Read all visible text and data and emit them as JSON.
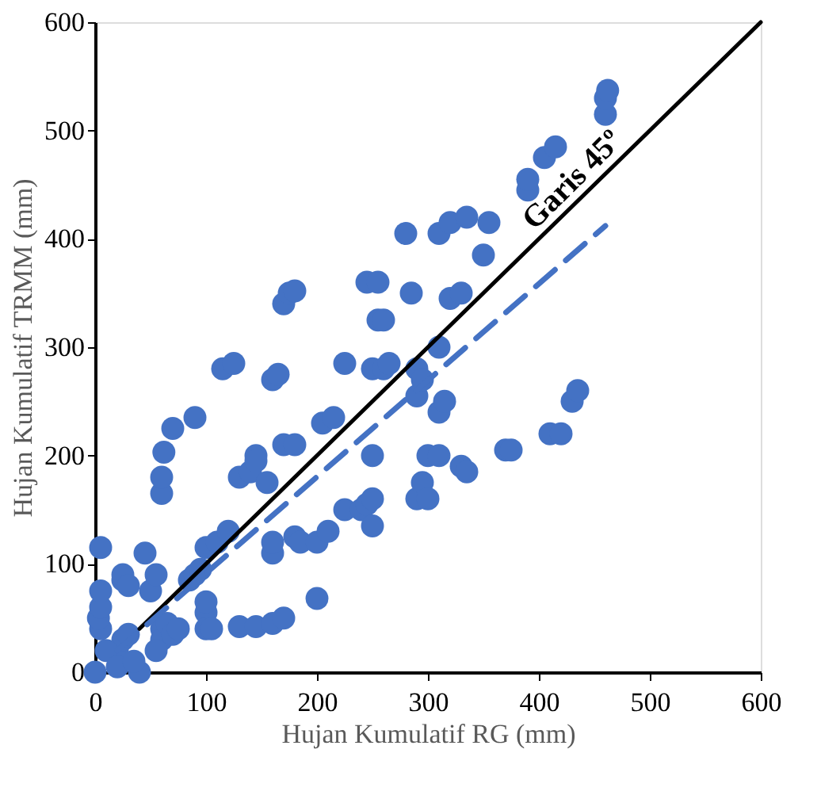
{
  "chart_data": {
    "type": "scatter",
    "xlabel": "Hujan Kumulatif  RG (mm)",
    "ylabel": "Hujan Kumulatif TRMM (mm)",
    "xlim": [
      0,
      600
    ],
    "ylim": [
      0,
      600
    ],
    "xticks": [
      0,
      100,
      200,
      300,
      400,
      500,
      600
    ],
    "yticks": [
      0,
      100,
      200,
      300,
      400,
      500,
      600
    ],
    "grid": false,
    "annotations": [
      "Garis 45º"
    ],
    "series": [
      {
        "color": "#4472c4",
        "marker": "circle",
        "x": [
          0,
          20,
          25,
          30,
          5,
          3,
          5,
          5,
          5,
          10,
          20,
          40,
          35,
          25,
          25,
          30,
          45,
          50,
          55,
          60,
          60,
          55,
          65,
          70,
          75,
          60,
          60,
          62,
          70,
          90,
          85,
          90,
          95,
          100,
          100,
          105,
          100,
          100,
          110,
          120,
          115,
          125,
          130,
          140,
          145,
          145,
          155,
          160,
          165,
          170,
          180,
          170,
          175,
          180,
          130,
          145,
          160,
          170,
          160,
          160,
          180,
          185,
          200,
          200,
          210,
          205,
          215,
          225,
          225,
          240,
          245,
          250,
          250,
          250,
          250,
          260,
          265,
          245,
          255,
          255,
          260,
          280,
          285,
          290,
          290,
          295,
          300,
          290,
          295,
          300,
          310,
          310,
          310,
          315,
          310,
          320,
          320,
          330,
          330,
          335,
          335,
          350,
          355,
          370,
          375,
          390,
          390,
          405,
          415,
          410,
          420,
          430,
          435,
          460,
          460,
          462
        ],
        "values": [
          0,
          20,
          30,
          35,
          40,
          50,
          60,
          75,
          115,
          20,
          5,
          0,
          10,
          85,
          90,
          80,
          110,
          75,
          90,
          40,
          30,
          20,
          45,
          35,
          40,
          165,
          180,
          203,
          225,
          235,
          85,
          90,
          95,
          55,
          40,
          40,
          65,
          115,
          120,
          130,
          280,
          285,
          180,
          185,
          200,
          195,
          175,
          270,
          275,
          210,
          210,
          340,
          350,
          352,
          42,
          42,
          45,
          50,
          110,
          120,
          125,
          120,
          120,
          68,
          130,
          230,
          235,
          285,
          150,
          150,
          155,
          160,
          135,
          200,
          280,
          280,
          285,
          360,
          360,
          325,
          325,
          405,
          350,
          280,
          160,
          175,
          160,
          255,
          270,
          200,
          200,
          300,
          240,
          250,
          405,
          415,
          345,
          350,
          190,
          185,
          420,
          385,
          415,
          205,
          205,
          445,
          455,
          475,
          485,
          220,
          220,
          250,
          260,
          515,
          530,
          537
        ]
      },
      {
        "type": "line",
        "color": "#000000",
        "line_style": "solid",
        "marker": "none",
        "x": [
          40,
          600
        ],
        "values": [
          40,
          600
        ]
      },
      {
        "type": "line",
        "color": "#4472c4",
        "line_style": "dashed",
        "marker": "none",
        "x": [
          20,
          460
        ],
        "values": [
          20,
          412
        ]
      }
    ]
  }
}
